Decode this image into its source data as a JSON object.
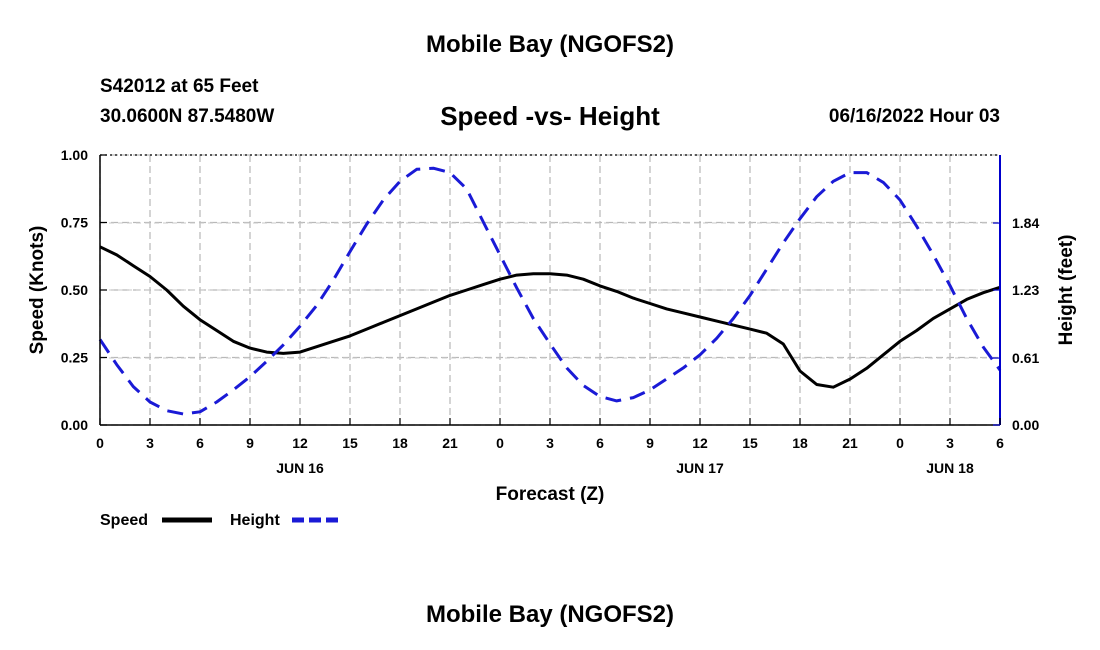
{
  "header": {
    "title": "Mobile Bay (NGOFS2)",
    "station": "S42012 at 65 Feet",
    "coords": "30.0600N  87.5480W",
    "subtitle": "Speed -vs- Height",
    "datetime": "06/16/2022 Hour 03"
  },
  "footer": {
    "title": "Mobile Bay (NGOFS2)"
  },
  "chart_data": {
    "type": "line",
    "title": "Speed -vs- Height",
    "xlabel": "Forecast (Z)",
    "ylabel": "Speed (Knots)",
    "y2label": "Height (feet)",
    "x_tick_labels": [
      "0",
      "3",
      "6",
      "9",
      "12",
      "15",
      "18",
      "21",
      "0",
      "3",
      "6",
      "9",
      "12",
      "15",
      "18",
      "21",
      "0",
      "3",
      "6"
    ],
    "x_tick_hours": [
      0,
      3,
      6,
      9,
      12,
      15,
      18,
      21,
      24,
      27,
      30,
      33,
      36,
      39,
      42,
      45,
      48,
      51,
      54
    ],
    "date_labels": [
      {
        "label": "JUN 16",
        "hour": 12
      },
      {
        "label": "JUN 17",
        "hour": 36
      },
      {
        "label": "JUN 18",
        "hour": 51
      }
    ],
    "xlim": [
      0,
      54
    ],
    "ylim": [
      0,
      1.0
    ],
    "y_ticks": [
      0.0,
      0.25,
      0.5,
      0.75,
      1.0
    ],
    "y_tick_labels": [
      "0.00",
      "0.25",
      "0.50",
      "0.75",
      "1.00"
    ],
    "y2lim": [
      0.0,
      2.46
    ],
    "y2_ticks": [
      0.0,
      0.61,
      1.23,
      1.84
    ],
    "y2_tick_labels": [
      "0.00",
      "0.61",
      "1.23",
      "1.84"
    ],
    "grid": true,
    "legend_position": "bottom-left",
    "series": [
      {
        "name": "Speed",
        "axis": "left",
        "color": "#000000",
        "style": "solid",
        "x": [
          0,
          1,
          2,
          3,
          4,
          5,
          6,
          7,
          8,
          9,
          10,
          11,
          12,
          13,
          14,
          15,
          16,
          17,
          18,
          19,
          20,
          21,
          22,
          23,
          24,
          25,
          26,
          27,
          28,
          29,
          30,
          31,
          32,
          33,
          34,
          35,
          36,
          37,
          38,
          39,
          40,
          41,
          42,
          43,
          44,
          45,
          46,
          47,
          48,
          49,
          50,
          51,
          52,
          53,
          54
        ],
        "values": [
          0.66,
          0.63,
          0.59,
          0.55,
          0.5,
          0.44,
          0.39,
          0.35,
          0.31,
          0.285,
          0.27,
          0.265,
          0.27,
          0.29,
          0.31,
          0.33,
          0.355,
          0.38,
          0.405,
          0.43,
          0.455,
          0.48,
          0.5,
          0.52,
          0.54,
          0.555,
          0.56,
          0.56,
          0.555,
          0.54,
          0.515,
          0.495,
          0.47,
          0.45,
          0.43,
          0.415,
          0.4,
          0.385,
          0.37,
          0.355,
          0.34,
          0.3,
          0.2,
          0.15,
          0.14,
          0.17,
          0.21,
          0.26,
          0.31,
          0.35,
          0.395,
          0.43,
          0.465,
          0.49,
          0.51
        ]
      },
      {
        "name": "Height",
        "axis": "right",
        "color": "#1a1ad6",
        "style": "dashed",
        "x": [
          0,
          1,
          2,
          3,
          4,
          5,
          6,
          7,
          8,
          9,
          10,
          11,
          12,
          13,
          14,
          15,
          16,
          17,
          18,
          19,
          20,
          21,
          22,
          23,
          24,
          25,
          26,
          27,
          28,
          29,
          30,
          31,
          32,
          33,
          34,
          35,
          36,
          37,
          38,
          39,
          40,
          41,
          42,
          43,
          44,
          45,
          46,
          47,
          48,
          49,
          50,
          51,
          52,
          53,
          54
        ],
        "values": [
          0.78,
          0.55,
          0.35,
          0.21,
          0.13,
          0.1,
          0.12,
          0.21,
          0.32,
          0.44,
          0.58,
          0.73,
          0.9,
          1.09,
          1.32,
          1.58,
          1.83,
          2.05,
          2.22,
          2.33,
          2.34,
          2.3,
          2.15,
          1.85,
          1.55,
          1.25,
          0.97,
          0.74,
          0.52,
          0.36,
          0.26,
          0.22,
          0.25,
          0.32,
          0.42,
          0.52,
          0.64,
          0.79,
          0.97,
          1.18,
          1.42,
          1.66,
          1.88,
          2.08,
          2.22,
          2.3,
          2.3,
          2.21,
          2.05,
          1.81,
          1.55,
          1.27,
          0.97,
          0.71,
          0.5
        ]
      }
    ]
  }
}
